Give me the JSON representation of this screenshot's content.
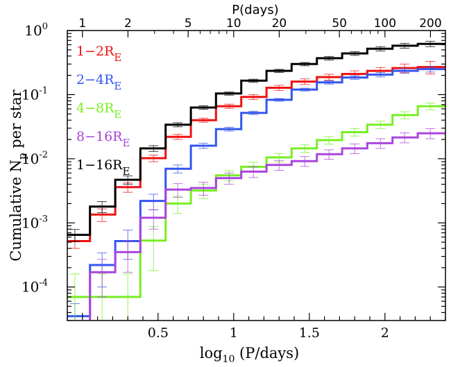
{
  "chart_data": {
    "type": "line",
    "step": true,
    "ylabel_parts": {
      "pre": "Cumulative N",
      "sub": "p",
      "post": " per star"
    },
    "xlabel_parts": {
      "pre": "log",
      "sub": "10",
      "post": " (P/days)"
    },
    "top_axis_title": "P(days)",
    "xlim": [
      -0.1,
      2.4
    ],
    "ylim": [
      3e-05,
      1
    ],
    "y_scale": "log",
    "x_ticks": [
      {
        "value": 0.5,
        "label": "0.5"
      },
      {
        "value": 1,
        "label": "1"
      },
      {
        "value": 1.5,
        "label": "1.5"
      },
      {
        "value": 2,
        "label": "2"
      }
    ],
    "x_minor_step": 0.1,
    "top_ticks": [
      {
        "value": 1,
        "label": "1"
      },
      {
        "value": 2,
        "label": "2"
      },
      {
        "value": 5,
        "label": "5"
      },
      {
        "value": 10,
        "label": "10"
      },
      {
        "value": 20,
        "label": "20"
      },
      {
        "value": 50,
        "label": "50"
      },
      {
        "value": 100,
        "label": "100"
      },
      {
        "value": 200,
        "label": "200"
      }
    ],
    "y_ticks": [
      {
        "value": 0.0001,
        "base": "10",
        "exp": "-4"
      },
      {
        "value": 0.001,
        "base": "10",
        "exp": "-3"
      },
      {
        "value": 0.01,
        "base": "10",
        "exp": "-2"
      },
      {
        "value": 0.1,
        "base": "10",
        "exp": "-1"
      },
      {
        "value": 1,
        "base": "10",
        "exp": "0"
      }
    ],
    "bin_edges": [
      -0.1,
      0.05,
      0.217,
      0.383,
      0.55,
      0.717,
      0.883,
      1.05,
      1.217,
      1.383,
      1.55,
      1.717,
      1.883,
      2.05,
      2.217,
      2.4
    ],
    "bin_centers": [
      -0.05,
      0.13,
      0.3,
      0.47,
      0.63,
      0.8,
      0.97,
      1.13,
      1.3,
      1.47,
      1.63,
      1.8,
      1.97,
      2.13,
      2.3
    ],
    "series": [
      {
        "name": "1−2R",
        "sub": "E",
        "color": "#ee1111",
        "values": [
          0.00052,
          0.00135,
          0.0036,
          0.0102,
          0.022,
          0.04,
          0.066,
          0.092,
          0.128,
          0.16,
          0.188,
          0.21,
          0.235,
          0.26,
          0.27
        ],
        "errors": [
          0.00012,
          0.0003,
          0.0006,
          0.0012,
          0.002,
          0.003,
          0.005,
          0.008,
          0.012,
          0.016,
          0.02,
          0.025,
          0.03,
          0.04,
          0.06
        ]
      },
      {
        "name": "2−4R",
        "sub": "E",
        "color": "#3355ee",
        "values": [
          3.5e-05,
          0.00022,
          0.00052,
          0.0022,
          0.007,
          0.016,
          0.029,
          0.052,
          0.083,
          0.12,
          0.155,
          0.185,
          0.205,
          0.235,
          0.25
        ],
        "errors": [
          2e-05,
          0.00012,
          0.00025,
          0.0006,
          0.001,
          0.0015,
          0.002,
          0.003,
          0.004,
          0.006,
          0.009,
          0.012,
          0.016,
          0.02,
          0.025
        ]
      },
      {
        "name": "4−8R",
        "sub": "E",
        "color": "#77ee22",
        "values": [
          7e-05,
          7e-05,
          7e-05,
          0.00053,
          0.002,
          0.0032,
          0.0055,
          0.0075,
          0.0105,
          0.0145,
          0.0195,
          0.026,
          0.034,
          0.048,
          0.066
        ],
        "errors": [
          9e-05,
          9e-05,
          9e-05,
          0.00035,
          0.0006,
          0.0008,
          0.001,
          0.0013,
          0.0016,
          0.002,
          0.0026,
          0.0034,
          0.0045,
          0.006,
          0.008
        ]
      },
      {
        "name": "8−16R",
        "sub": "E",
        "color": "#aa44dd",
        "values": [
          1e-06,
          0.00017,
          0.00035,
          0.0012,
          0.0033,
          0.0035,
          0.005,
          0.0063,
          0.008,
          0.0092,
          0.0118,
          0.0145,
          0.0175,
          0.0215,
          0.025
        ],
        "errors": [
          5e-07,
          0.0001,
          0.00018,
          0.0004,
          0.0008,
          0.0008,
          0.001,
          0.0012,
          0.0014,
          0.0016,
          0.002,
          0.0025,
          0.003,
          0.0038,
          0.0045
        ]
      },
      {
        "name": "1−16R",
        "sub": "E",
        "color": "#000000",
        "values": [
          0.00065,
          0.0018,
          0.0047,
          0.0145,
          0.034,
          0.063,
          0.104,
          0.165,
          0.235,
          0.3,
          0.37,
          0.44,
          0.52,
          0.58,
          0.62
        ],
        "errors": [
          0.00014,
          0.00035,
          0.0007,
          0.0015,
          0.0025,
          0.004,
          0.006,
          0.009,
          0.013,
          0.018,
          0.024,
          0.03,
          0.04,
          0.05,
          0.06
        ]
      }
    ],
    "legend_position": "top-left"
  }
}
